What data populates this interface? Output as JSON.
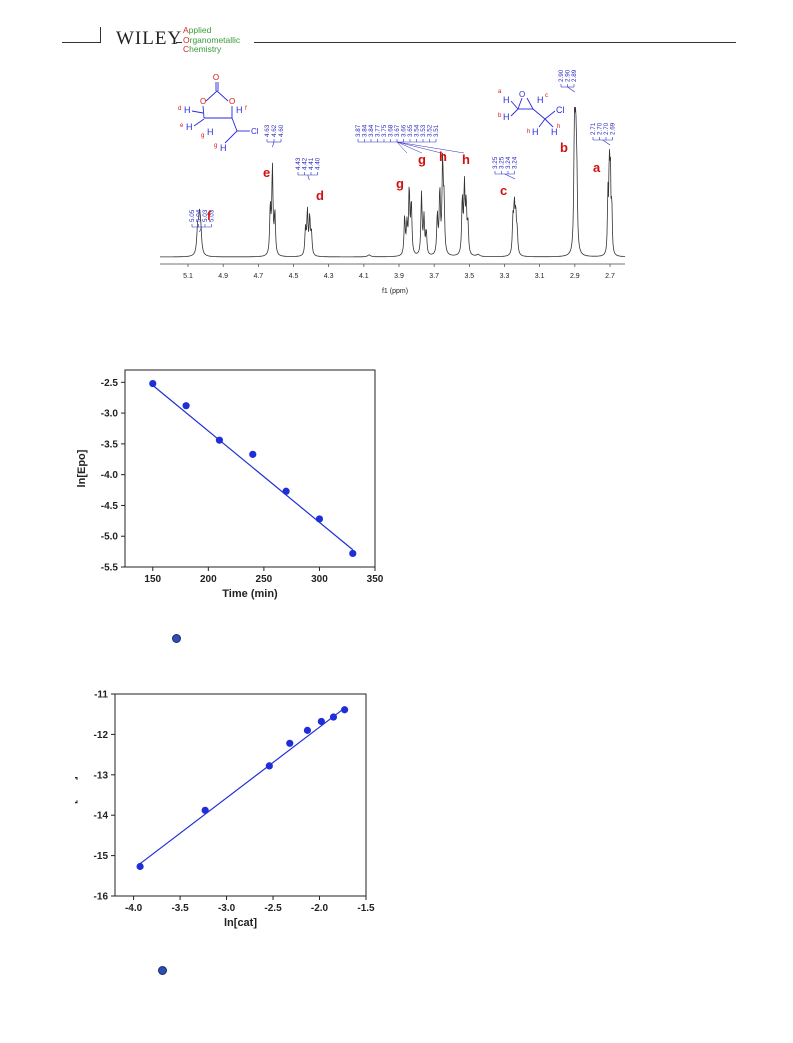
{
  "header": {
    "publisher": "WILEY",
    "journal_lines": [
      {
        "initial": "A",
        "rest": "pplied"
      },
      {
        "initial": "O",
        "rest": "rganometallic"
      },
      {
        "initial": "C",
        "rest": "hemistry"
      }
    ]
  },
  "nmr": {
    "xlabel": "f1 (ppm)",
    "ticks": [
      "5.1",
      "4.9",
      "4.7",
      "4.5",
      "4.3",
      "4.1",
      "3.9",
      "3.7",
      "3.5",
      "3.3",
      "3.1",
      "2.9",
      "2.7"
    ],
    "peak_groups": [
      {
        "labels": [
          "5.05",
          "5.04",
          "5.03",
          "5.03"
        ],
        "letter": "f"
      },
      {
        "labels": [
          "4.63",
          "4.62",
          "4.60"
        ],
        "letter": "e"
      },
      {
        "labels": [
          "4.43",
          "4.42",
          "4.41",
          "4.40"
        ],
        "letter": "d"
      },
      {
        "labels": [
          "3.87",
          "3.84",
          "3.84",
          "3.77",
          "3.75",
          "3.68",
          "3.67",
          "3.66",
          "3.65",
          "3.54",
          "3.53",
          "3.52",
          "3.51"
        ],
        "letters": [
          "g",
          "g",
          "h",
          "h"
        ]
      },
      {
        "labels": [
          "3.25",
          "3.25",
          "3.24",
          "3.24"
        ],
        "letter": "c"
      },
      {
        "labels": [
          "2.90",
          "2.90",
          "2.89"
        ],
        "letter": "b"
      },
      {
        "labels": [
          "2.71",
          "2.70",
          "2.70",
          "2.69"
        ],
        "letter": "a"
      }
    ],
    "structure1": {
      "atoms": [
        "O",
        "O",
        "O",
        "Cl"
      ],
      "h_labels": [
        "d",
        "e",
        "g",
        "g",
        "f"
      ]
    },
    "structure2": {
      "atoms": [
        "O",
        "Cl"
      ],
      "h_labels": [
        "a",
        "b",
        "c",
        "h",
        "h"
      ]
    }
  },
  "chart_data": [
    {
      "type": "scatter",
      "xlabel": "Time (min)",
      "ylabel": "ln[Epo]",
      "xlim": [
        125,
        350
      ],
      "ylim": [
        -5.5,
        -2.3
      ],
      "xticks": [
        "150",
        "200",
        "250",
        "300",
        "350"
      ],
      "yticks": [
        "-2.5",
        "-3.0",
        "-3.5",
        "-4.0",
        "-4.5",
        "-5.0",
        "-5.5"
      ],
      "points": [
        {
          "x": 150,
          "y": -2.52
        },
        {
          "x": 180,
          "y": -2.88
        },
        {
          "x": 210,
          "y": -3.44
        },
        {
          "x": 240,
          "y": -3.67
        },
        {
          "x": 270,
          "y": -4.27
        },
        {
          "x": 300,
          "y": -4.72
        },
        {
          "x": 330,
          "y": -5.28
        }
      ],
      "fit": {
        "x": [
          150,
          330
        ],
        "y": [
          -2.55,
          -5.22
        ]
      },
      "color": "#1f2fd8"
    },
    {
      "type": "scatter",
      "xlabel": "ln[cat]",
      "ylabel": "ln[rate]",
      "xlim": [
        -4.2,
        -1.5
      ],
      "ylim": [
        -16,
        -11
      ],
      "xticks": [
        "-4.0",
        "-3.5",
        "-3.0",
        "-2.5",
        "-2.0",
        "-1.5"
      ],
      "yticks": [
        "-11",
        "-12",
        "-13",
        "-14",
        "-15",
        "-16"
      ],
      "points": [
        {
          "x": -3.93,
          "y": -15.27
        },
        {
          "x": -3.23,
          "y": -13.88
        },
        {
          "x": -2.54,
          "y": -12.78
        },
        {
          "x": -2.32,
          "y": -12.22
        },
        {
          "x": -2.13,
          "y": -11.9
        },
        {
          "x": -1.98,
          "y": -11.68
        },
        {
          "x": -1.85,
          "y": -11.57
        },
        {
          "x": -1.73,
          "y": -11.39
        }
      ],
      "fit": {
        "x": [
          -3.93,
          -1.72
        ],
        "y": [
          -15.2,
          -11.33
        ]
      },
      "color": "#1f2fd8"
    }
  ]
}
